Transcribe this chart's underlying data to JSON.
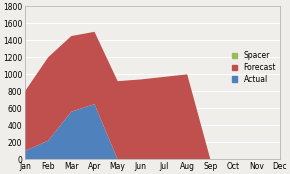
{
  "months": [
    "Jan",
    "Feb",
    "Mar",
    "Apr",
    "May",
    "Jun",
    "Jul",
    "Aug",
    "Sep",
    "Oct",
    "Nov",
    "Dec"
  ],
  "actual": [
    100,
    220,
    560,
    650,
    0,
    0,
    0,
    0,
    0,
    0,
    0,
    0
  ],
  "forecast": [
    700,
    980,
    890,
    850,
    920,
    940,
    970,
    1000,
    0,
    0,
    0,
    0
  ],
  "spacer": [
    0,
    0,
    0,
    0,
    0,
    0,
    0,
    0,
    0,
    0,
    0,
    0
  ],
  "actual_color": "#4f81bd",
  "forecast_color": "#c0504d",
  "spacer_color": "#9bbb59",
  "background_color": "#f0eeeb",
  "plot_bg_color": "#f0eeeb",
  "grid_color": "#ffffff",
  "ylim": [
    0,
    1800
  ],
  "yticks": [
    0,
    200,
    400,
    600,
    800,
    1000,
    1200,
    1400,
    1600,
    1800
  ]
}
